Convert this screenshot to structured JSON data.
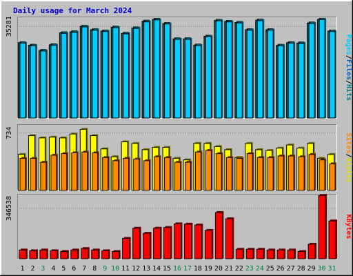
{
  "chart_data": {
    "type": "bar",
    "title": "Daily usage for March 2024",
    "days": [
      "1",
      "2",
      "3",
      "4",
      "5",
      "6",
      "7",
      "8",
      "9",
      "10",
      "11",
      "12",
      "13",
      "14",
      "15",
      "16",
      "17",
      "18",
      "19",
      "20",
      "21",
      "22",
      "23",
      "24",
      "25",
      "26",
      "27",
      "28",
      "29",
      "30",
      "31"
    ],
    "weekend_days": [
      3,
      9,
      10,
      16,
      17,
      23,
      24,
      30,
      31
    ],
    "panels": [
      {
        "name": "hits-files-pages",
        "ylabel_parts": [
          "Pages",
          "/",
          "Files",
          "/",
          "Hits"
        ],
        "y_tick_label": "35281",
        "y_tick_value": 35281,
        "ylim": [
          0,
          38000
        ],
        "series": [
          {
            "name": "Hits",
            "color": "#006666",
            "values": [
              29000,
              28000,
              26000,
              28200,
              32800,
              33200,
              35300,
              34000,
              33500,
              35000,
              32600,
              34700,
              37300,
              38000,
              36400,
              30500,
              30500,
              28100,
              31500,
              37600,
              37200,
              36800,
              34000,
              37700,
              34000,
              28000,
              29000,
              28900,
              36600,
              38000,
              33500
            ]
          },
          {
            "name": "Files",
            "color": "#00ccff",
            "values": [
              28800,
              27800,
              25800,
              28000,
              32600,
              33000,
              35100,
              33800,
              33300,
              34800,
              32400,
              34500,
              37000,
              37800,
              36200,
              30300,
              30300,
              27900,
              31300,
              37400,
              37000,
              36600,
              33800,
              37500,
              33800,
              27800,
              28800,
              28700,
              36400,
              37900,
              33300
            ]
          }
        ]
      },
      {
        "name": "visits-sites",
        "ylabel_parts": [
          "Sites",
          "/",
          "Visits"
        ],
        "y_tick_label": "734",
        "y_tick_value": 734,
        "ylim": [
          0,
          810
        ],
        "series": [
          {
            "name": "Visits",
            "color": "#ffff00",
            "values": [
              460,
              700,
              670,
              680,
              670,
              720,
              780,
              700,
              530,
              430,
              620,
              600,
              520,
              550,
              550,
              410,
              390,
              600,
              600,
              560,
              520,
              420,
              600,
              520,
              510,
              540,
              580,
              540,
              600,
              410,
              460
            ]
          },
          {
            "name": "Sites",
            "color": "#ff8800",
            "values": [
              410,
              410,
              360,
              450,
              470,
              480,
              490,
              480,
              420,
              380,
              410,
              400,
              380,
              430,
              420,
              360,
              360,
              490,
              510,
              470,
              420,
              410,
              470,
              420,
              420,
              440,
              440,
              430,
              460,
              390,
              340
            ]
          }
        ]
      },
      {
        "name": "kbytes",
        "ylabel_parts": [
          "KBytes"
        ],
        "y_tick_label": "346538",
        "y_tick_value": 346538,
        "ylim": [
          0,
          427000
        ],
        "series": [
          {
            "name": "KBytes",
            "color": "#ff0000",
            "values": [
              60000,
              55000,
              60000,
              55000,
              50000,
              60000,
              70000,
              60000,
              55000,
              50000,
              140000,
              210000,
              175000,
              210000,
              215000,
              240000,
              238000,
              232000,
              195000,
              318000,
              275000,
              65000,
              65000,
              65000,
              60000,
              60000,
              60000,
              50000,
              100000,
              435000,
              260000
            ]
          }
        ]
      }
    ]
  },
  "colors": {
    "background": "#c0c0c0",
    "title": "#0000cc",
    "weekday_label": "#000000",
    "weekend_label": "#008040",
    "ylabel_pages": "#00ccff",
    "ylabel_files": "#0066cc",
    "ylabel_hits": "#008080",
    "ylabel_sites": "#ff8800",
    "ylabel_visits": "#dddd00",
    "ylabel_kbytes": "#ff0000"
  }
}
